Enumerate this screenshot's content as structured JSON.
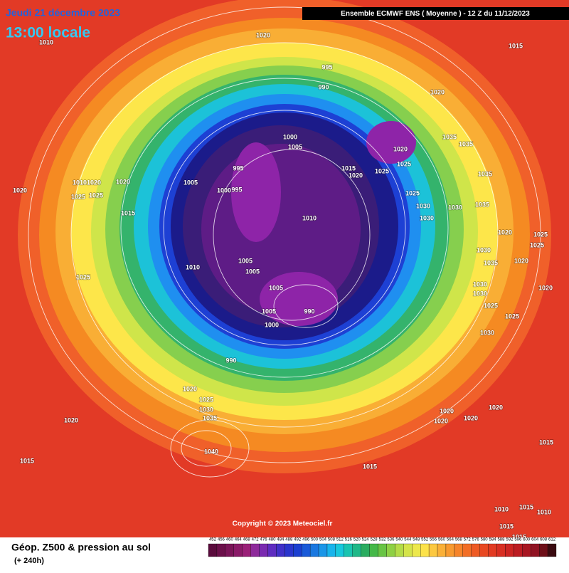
{
  "header": {
    "date": "Jeudi 21 décembre 2023",
    "time": "13:00 locale",
    "model": "Ensemble ECMWF ENS  ( Moyenne )  - 12 Z du 11/12/2023"
  },
  "copyright": "Copyright © 2023 Meteociel.fr",
  "footer": {
    "title": "Géop. Z500 & pression au sol",
    "lead": "(+ 240h)"
  },
  "legend": {
    "labels": [
      452,
      456,
      460,
      464,
      468,
      472,
      476,
      480,
      484,
      488,
      492,
      496,
      500,
      504,
      508,
      512,
      516,
      520,
      524,
      528,
      532,
      536,
      540,
      544,
      548,
      552,
      556,
      560,
      564,
      568,
      572,
      576,
      580,
      584,
      588,
      592,
      596,
      600,
      604,
      608,
      612
    ]
  },
  "isobar_labels": [
    1020,
    1010,
    1015,
    995,
    990,
    1020,
    1000,
    1005,
    1035,
    1035,
    1020,
    1025,
    1025,
    995,
    1015,
    1020,
    1005,
    1020,
    1020,
    1000,
    995,
    1035,
    1025,
    1030,
    1030,
    1035,
    1015,
    1010,
    1030,
    1020,
    1025,
    1025,
    1030,
    1020,
    1010,
    1005,
    1005,
    1025,
    1005,
    1035,
    1030,
    1020,
    1030,
    1005,
    990,
    1000,
    1025,
    1025,
    1030,
    990,
    1020,
    1025,
    1030,
    1035,
    1020,
    1020,
    1020,
    1020,
    1020,
    1040,
    1015,
    1015,
    1015,
    1015,
    1010,
    1010,
    1015,
    1015,
    1010,
    1020,
    1025,
    1025
  ]
}
